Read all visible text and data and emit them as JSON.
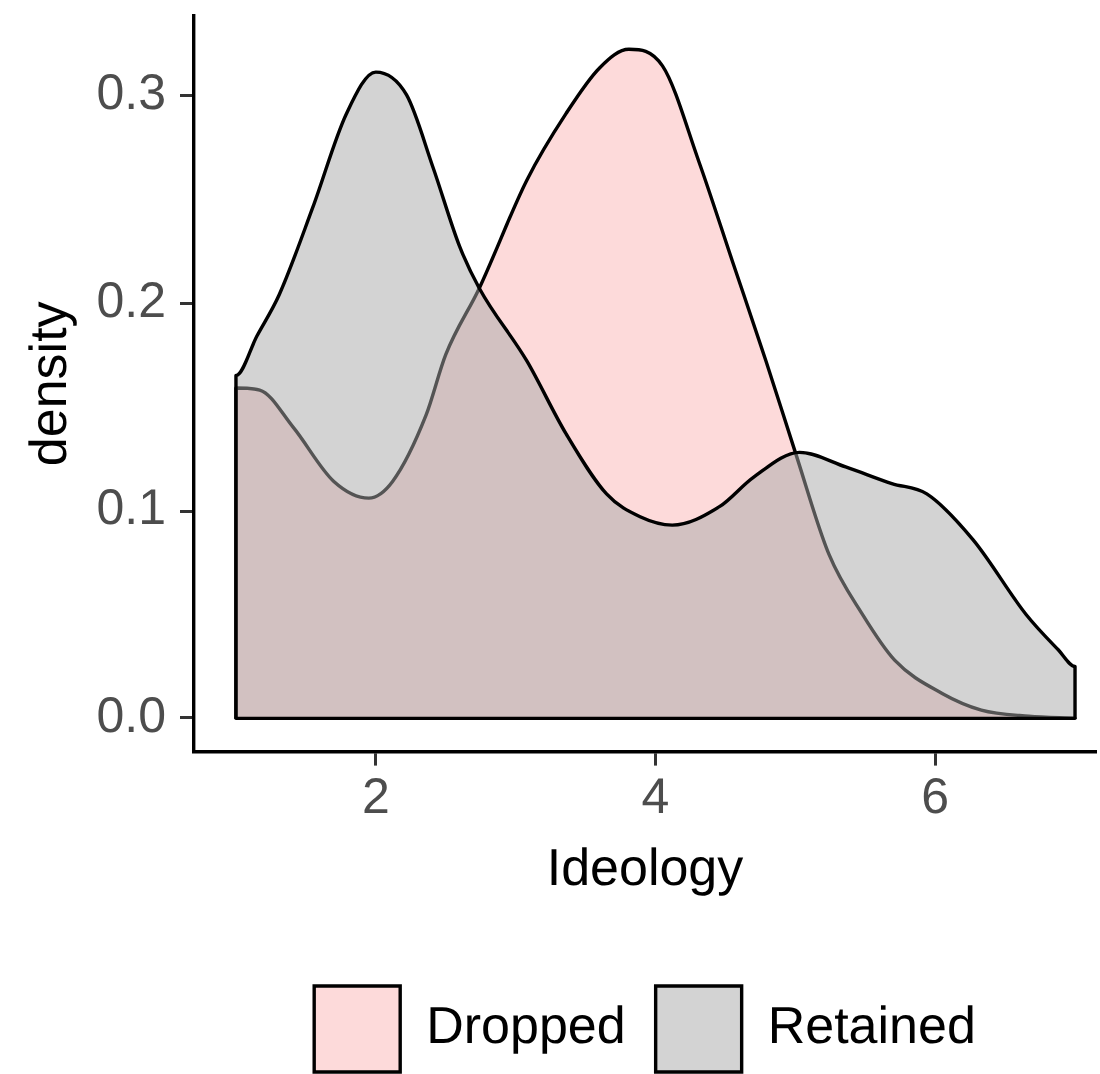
{
  "chart_data": {
    "type": "area",
    "xlabel": "Ideology",
    "ylabel": "density",
    "xlim": [
      0.7,
      7.15
    ],
    "xticks": [
      2,
      4,
      6
    ],
    "ylim": [
      -0.016,
      0.338
    ],
    "yticks": [
      {
        "value": 0,
        "label": "0.0"
      },
      0.1,
      0.2,
      0.3
    ],
    "legend": "bottom",
    "ref_lines": [
      {
        "axis": "y",
        "value": 0,
        "color": "#000000"
      }
    ],
    "series": [
      {
        "name": "Dropped",
        "color": "#fddada",
        "x": [
          1,
          1,
          1.17,
          1.41,
          1.7,
          1.95,
          2.12,
          2.36,
          2.5,
          2.74,
          3.08,
          3.36,
          3.6,
          3.81,
          4.05,
          4.31,
          4.55,
          4.79,
          5.0,
          5.24,
          5.48,
          5.71,
          6.05,
          6.33,
          6.67,
          7.0
        ],
        "values": [
          0,
          0.159,
          0.158,
          0.14,
          0.114,
          0.106,
          0.114,
          0.146,
          0.175,
          0.207,
          0.259,
          0.291,
          0.313,
          0.322,
          0.314,
          0.268,
          0.22,
          0.172,
          0.128,
          0.079,
          0.05,
          0.028,
          0.012,
          0.004,
          0.001,
          0.0
        ]
      },
      {
        "name": "Retained",
        "color": "#d3d3d3",
        "x": [
          1,
          1,
          1.15,
          1.31,
          1.55,
          1.79,
          2.0,
          2.22,
          2.41,
          2.6,
          2.74,
          3.08,
          3.36,
          3.65,
          3.89,
          4.12,
          4.46,
          4.7,
          5.03,
          5.36,
          5.69,
          5.94,
          6.27,
          6.65,
          6.88,
          7.0,
          7.0
        ],
        "values": [
          0,
          0.165,
          0.184,
          0.204,
          0.246,
          0.291,
          0.311,
          0.3,
          0.265,
          0.227,
          0.207,
          0.172,
          0.137,
          0.108,
          0.097,
          0.093,
          0.102,
          0.116,
          0.128,
          0.121,
          0.113,
          0.108,
          0.086,
          0.05,
          0.033,
          0.025,
          0
        ]
      }
    ]
  }
}
